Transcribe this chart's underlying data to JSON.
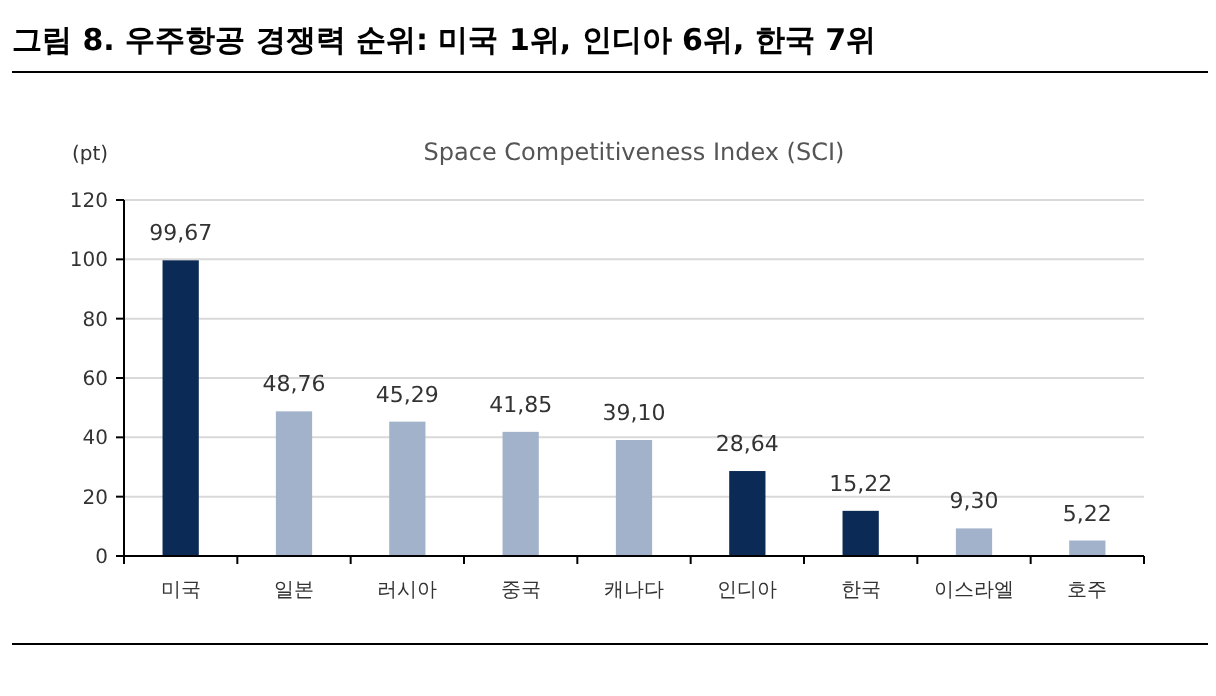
{
  "chart_data": {
    "type": "bar",
    "title": "그림 8. 우주항공 경쟁력 순위: 미국 1위, 인디아 6위, 한국 7위",
    "subtitle": "Space Competitiveness Index (SCI)",
    "ylabel": "(pt)",
    "categories": [
      "미국",
      "일본",
      "러시아",
      "중국",
      "캐나다",
      "인디아",
      "한국",
      "이스라엘",
      "호주"
    ],
    "values": [
      99.67,
      48.76,
      45.29,
      41.85,
      39.1,
      28.64,
      15.22,
      9.3,
      5.22
    ],
    "value_labels": [
      "99,67",
      "48,76",
      "45,29",
      "41,85",
      "39,10",
      "28,64",
      "15,22",
      "9,30",
      "5,22"
    ],
    "colors": [
      "#0b2a55",
      "#a3b2cb",
      "#a3b2cb",
      "#a3b2cb",
      "#a3b2cb",
      "#0b2a55",
      "#0b2a55",
      "#a3b2cb",
      "#a3b2cb"
    ],
    "ylim": [
      0,
      120
    ],
    "yticks": [
      0,
      20,
      40,
      60,
      80,
      100,
      120
    ],
    "grid": "y"
  }
}
